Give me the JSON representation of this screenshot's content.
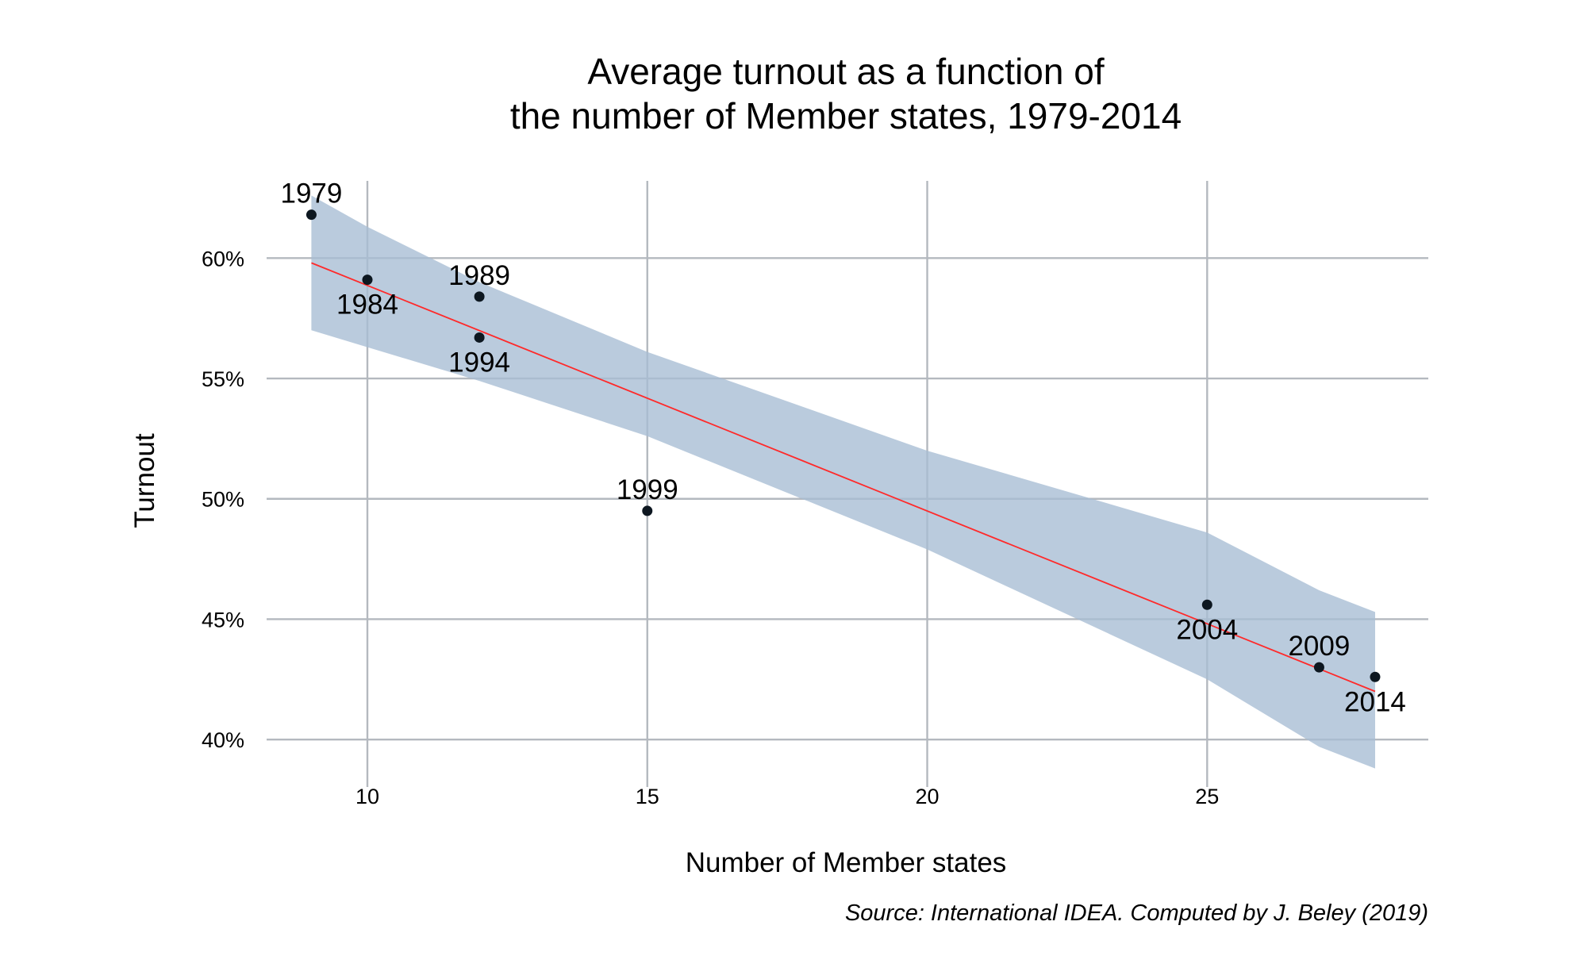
{
  "chart_data": {
    "type": "scatter",
    "title": [
      "Average turnout as a function of",
      "the number of Member states, 1979-2014"
    ],
    "xlabel": "Number of Member states",
    "ylabel": "Turnout",
    "caption": "Source: International IDEA. Computed by J. Beley (2019)",
    "xlim": [
      8.2,
      28.95
    ],
    "ylim": [
      37.6,
      63.8
    ],
    "xticks": [
      10,
      15,
      20,
      25
    ],
    "xtick_labels": [
      "10",
      "15",
      "20",
      "25"
    ],
    "yticks": [
      40,
      45,
      50,
      55,
      60
    ],
    "ytick_labels": [
      "40%",
      "45%",
      "50%",
      "55%",
      "60%"
    ],
    "grid": true,
    "legend": "none",
    "colors": {
      "points": "#0d1720",
      "fit_line": "#ff2a2a",
      "confidence_band": "#a6bcd4",
      "grid": "#b4b9bf"
    },
    "points": [
      {
        "label": "1979",
        "x": 9,
        "y": 61.8,
        "label_pos": "above"
      },
      {
        "label": "1984",
        "x": 10,
        "y": 59.1,
        "label_pos": "below"
      },
      {
        "label": "1989",
        "x": 12,
        "y": 58.4,
        "label_pos": "above"
      },
      {
        "label": "1994",
        "x": 12,
        "y": 56.7,
        "label_pos": "below"
      },
      {
        "label": "1999",
        "x": 15,
        "y": 49.5,
        "label_pos": "above"
      },
      {
        "label": "2004",
        "x": 25,
        "y": 45.6,
        "label_pos": "below"
      },
      {
        "label": "2009",
        "x": 27,
        "y": 43.0,
        "label_pos": "above"
      },
      {
        "label": "2014",
        "x": 28,
        "y": 42.6,
        "label_pos": "below"
      }
    ],
    "fit_line": {
      "x": [
        9,
        28
      ],
      "y": [
        59.8,
        42.0
      ]
    },
    "confidence_band": {
      "x": [
        9,
        10,
        12,
        15,
        20,
        25,
        27,
        28
      ],
      "upper": [
        62.6,
        61.3,
        59.0,
        56.1,
        52.0,
        48.6,
        46.2,
        45.3
      ],
      "lower": [
        57.0,
        56.3,
        54.9,
        52.6,
        47.9,
        42.5,
        39.7,
        38.8
      ]
    }
  }
}
